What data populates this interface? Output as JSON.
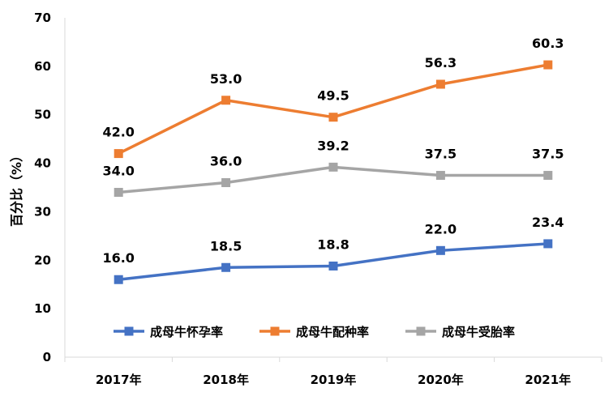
{
  "chart_data": {
    "type": "line",
    "categories": [
      "2017年",
      "2018年",
      "2019年",
      "2020年",
      "2021年"
    ],
    "ylabel": "百分比（%）",
    "ylim": [
      0,
      70
    ],
    "yticks": [
      0,
      10,
      20,
      30,
      40,
      50,
      60,
      70
    ],
    "grid": false,
    "legend_position": "bottom-center (inside plot)",
    "series": [
      {
        "name": "成母牛怀孕率",
        "color": "#4472C4",
        "values": [
          16.0,
          18.5,
          18.8,
          22.0,
          23.4
        ],
        "labels": [
          "16.0",
          "18.5",
          "18.8",
          "22.0",
          "23.4"
        ]
      },
      {
        "name": "成母牛配种率",
        "color": "#ED7D31",
        "values": [
          42.0,
          53.0,
          49.5,
          56.3,
          60.3
        ],
        "labels": [
          "42.0",
          "53.0",
          "49.5",
          "56.3",
          "60.3"
        ]
      },
      {
        "name": "成母牛受胎率",
        "color": "#A5A5A5",
        "values": [
          34.0,
          36.0,
          39.2,
          37.5,
          37.5
        ],
        "labels": [
          "34.0",
          "36.0",
          "39.2",
          "37.5",
          "37.5"
        ]
      }
    ]
  }
}
